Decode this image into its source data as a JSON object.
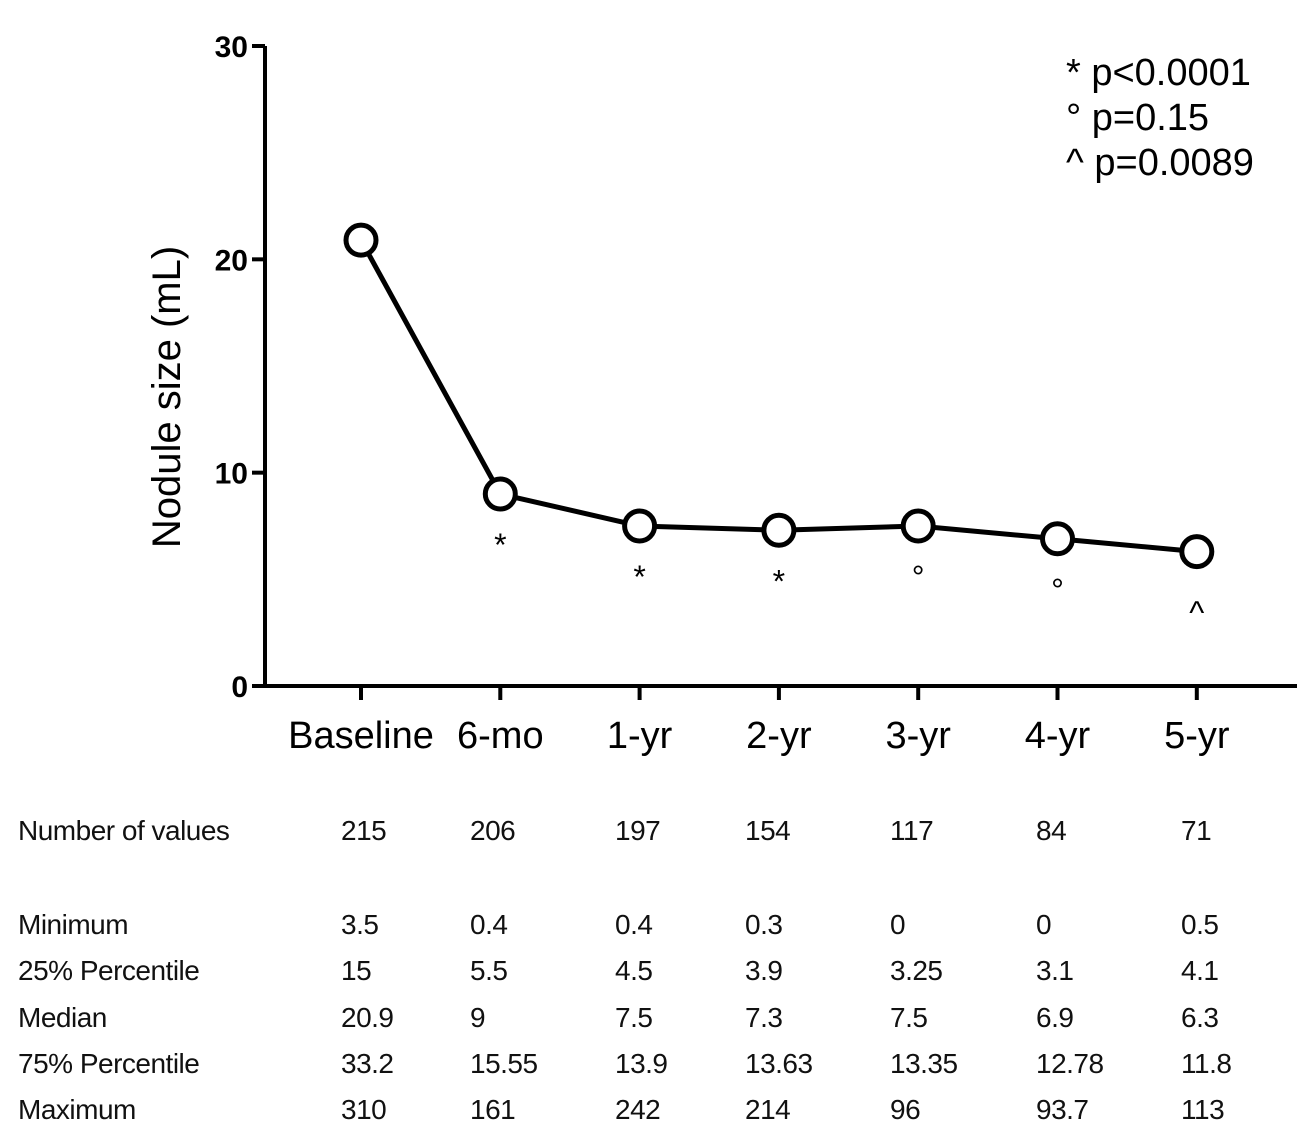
{
  "chart_data": {
    "type": "line",
    "categories": [
      "Baseline",
      "6-mo",
      "1-yr",
      "2-yr",
      "3-yr",
      "4-yr",
      "5-yr"
    ],
    "series": [
      {
        "values": [
          20.9,
          9,
          7.5,
          7.3,
          7.5,
          6.9,
          6.3
        ]
      }
    ],
    "significance_markers": [
      "",
      "*",
      "*",
      "*",
      "°",
      "°",
      "^"
    ],
    "ylabel": "Nodule size (mL)",
    "xlabel": "",
    "ylim": [
      0,
      30
    ],
    "yticks": [
      "0",
      "10",
      "20",
      "30"
    ],
    "legend": [
      "* p<0.0001",
      "° p=0.15",
      "^ p=0.0089"
    ],
    "legend_position": "top-right",
    "grid": false
  },
  "stats_table": {
    "rows": [
      {
        "label": "Number of values",
        "values": [
          "215",
          "206",
          "197",
          "154",
          "117",
          "84",
          "71"
        ]
      },
      {
        "label": "Minimum",
        "values": [
          "3.5",
          "0.4",
          "0.4",
          "0.3",
          "0",
          "0",
          "0.5"
        ]
      },
      {
        "label": "25% Percentile",
        "values": [
          "15",
          "5.5",
          "4.5",
          "3.9",
          "3.25",
          "3.1",
          "4.1"
        ]
      },
      {
        "label": "Median",
        "values": [
          "20.9",
          "9",
          "7.5",
          "7.3",
          "7.5",
          "6.9",
          "6.3"
        ]
      },
      {
        "label": "75% Percentile",
        "values": [
          "33.2",
          "15.55",
          "13.9",
          "13.63",
          "13.35",
          "12.78",
          "11.8"
        ]
      },
      {
        "label": "Maximum",
        "values": [
          "310",
          "161",
          "242",
          "214",
          "96",
          "93.7",
          "113"
        ]
      }
    ]
  }
}
